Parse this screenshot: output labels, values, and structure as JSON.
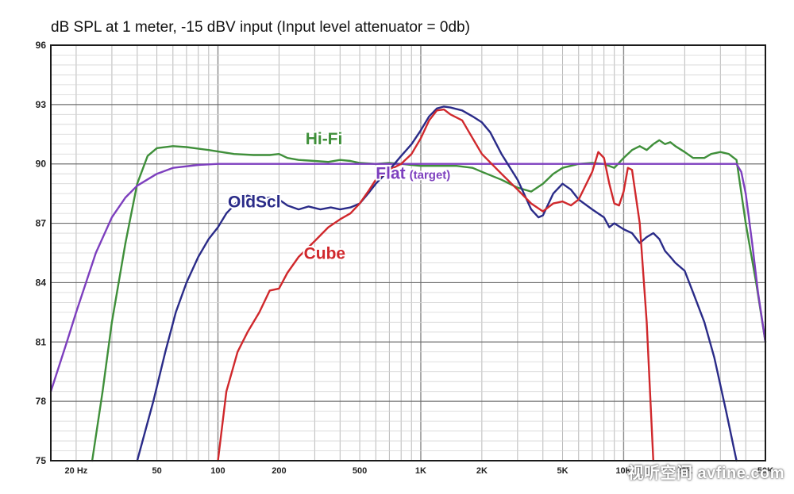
{
  "watermark": "视听空间 avfine.com",
  "chart_data": {
    "type": "line",
    "title": "dB SPL at 1 meter, -15 dBV input (Input level attenuator = 0db)",
    "xscale": "log",
    "xlim": [
      15,
      50000
    ],
    "ylim": [
      75,
      96
    ],
    "yticks": [
      75,
      78,
      81,
      84,
      87,
      90,
      93,
      96
    ],
    "xticks": [
      {
        "value": 20,
        "label": "20 Hz"
      },
      {
        "value": 50,
        "label": "50"
      },
      {
        "value": 100,
        "label": "100"
      },
      {
        "value": 200,
        "label": "200"
      },
      {
        "value": 500,
        "label": "500"
      },
      {
        "value": 1000,
        "label": "1K"
      },
      {
        "value": 2000,
        "label": "2K"
      },
      {
        "value": 5000,
        "label": "5K"
      },
      {
        "value": 10000,
        "label": "10K"
      },
      {
        "value": 20000,
        "label": "20K"
      },
      {
        "value": 50000,
        "label": "50K"
      }
    ],
    "grid": true,
    "series": [
      {
        "name": "Hi-Fi",
        "color": "#3f8f3a",
        "label_at": [
          270,
          91.0
        ],
        "points": [
          [
            24,
            75
          ],
          [
            27,
            78.5
          ],
          [
            30,
            82
          ],
          [
            35,
            86
          ],
          [
            40,
            89
          ],
          [
            45,
            90.4
          ],
          [
            50,
            90.8
          ],
          [
            60,
            90.9
          ],
          [
            70,
            90.85
          ],
          [
            90,
            90.7
          ],
          [
            120,
            90.5
          ],
          [
            150,
            90.45
          ],
          [
            180,
            90.45
          ],
          [
            200,
            90.5
          ],
          [
            220,
            90.3
          ],
          [
            250,
            90.2
          ],
          [
            300,
            90.15
          ],
          [
            350,
            90.1
          ],
          [
            400,
            90.2
          ],
          [
            450,
            90.15
          ],
          [
            500,
            90.05
          ],
          [
            600,
            90.0
          ],
          [
            700,
            90.05
          ],
          [
            800,
            90.0
          ],
          [
            900,
            89.95
          ],
          [
            1000,
            89.9
          ],
          [
            1200,
            89.9
          ],
          [
            1500,
            89.9
          ],
          [
            1800,
            89.8
          ],
          [
            2000,
            89.6
          ],
          [
            2500,
            89.2
          ],
          [
            3000,
            88.8
          ],
          [
            3500,
            88.6
          ],
          [
            4000,
            89.0
          ],
          [
            4500,
            89.5
          ],
          [
            5000,
            89.8
          ],
          [
            6000,
            90.0
          ],
          [
            7000,
            90.05
          ],
          [
            8000,
            90.0
          ],
          [
            9000,
            89.8
          ],
          [
            10000,
            90.3
          ],
          [
            11000,
            90.7
          ],
          [
            12000,
            90.9
          ],
          [
            13000,
            90.7
          ],
          [
            14000,
            91.0
          ],
          [
            15000,
            91.2
          ],
          [
            16000,
            91.0
          ],
          [
            17000,
            91.1
          ],
          [
            18000,
            90.9
          ],
          [
            20000,
            90.6
          ],
          [
            22000,
            90.3
          ],
          [
            25000,
            90.3
          ],
          [
            27000,
            90.5
          ],
          [
            30000,
            90.6
          ],
          [
            33000,
            90.5
          ],
          [
            36000,
            90.2
          ],
          [
            40000,
            87
          ],
          [
            45000,
            84
          ],
          [
            50000,
            81
          ]
        ]
      },
      {
        "name": "Flat",
        "subname": "(target)",
        "color": "#7d3fbe",
        "label_at": [
          600,
          89.25
        ],
        "points": [
          [
            15,
            78.5
          ],
          [
            18,
            81
          ],
          [
            20,
            82.5
          ],
          [
            25,
            85.5
          ],
          [
            30,
            87.3
          ],
          [
            35,
            88.3
          ],
          [
            40,
            88.9
          ],
          [
            50,
            89.5
          ],
          [
            60,
            89.8
          ],
          [
            80,
            89.95
          ],
          [
            100,
            90
          ],
          [
            1000,
            90
          ],
          [
            36000,
            90
          ],
          [
            38000,
            89.6
          ],
          [
            40000,
            88.5
          ],
          [
            43000,
            86
          ],
          [
            46000,
            83.5
          ],
          [
            50000,
            81
          ]
        ]
      },
      {
        "name": "OldScl",
        "color": "#2a2b88",
        "label_at": [
          112,
          87.8
        ],
        "points": [
          [
            40,
            75
          ],
          [
            48,
            78
          ],
          [
            55,
            80.5
          ],
          [
            62,
            82.5
          ],
          [
            70,
            84
          ],
          [
            80,
            85.3
          ],
          [
            90,
            86.2
          ],
          [
            100,
            86.8
          ],
          [
            110,
            87.5
          ],
          [
            125,
            88.1
          ],
          [
            140,
            88.4
          ],
          [
            160,
            88.2
          ],
          [
            180,
            88.3
          ],
          [
            200,
            88.2
          ],
          [
            220,
            87.9
          ],
          [
            250,
            87.7
          ],
          [
            280,
            87.85
          ],
          [
            320,
            87.7
          ],
          [
            360,
            87.8
          ],
          [
            400,
            87.7
          ],
          [
            450,
            87.8
          ],
          [
            500,
            88.0
          ],
          [
            550,
            88.5
          ],
          [
            600,
            89.0
          ],
          [
            700,
            89.7
          ],
          [
            800,
            90.4
          ],
          [
            900,
            91.0
          ],
          [
            1000,
            91.7
          ],
          [
            1100,
            92.4
          ],
          [
            1200,
            92.8
          ],
          [
            1300,
            92.9
          ],
          [
            1400,
            92.85
          ],
          [
            1600,
            92.7
          ],
          [
            1800,
            92.4
          ],
          [
            2000,
            92.1
          ],
          [
            2200,
            91.6
          ],
          [
            2500,
            90.5
          ],
          [
            3000,
            89.2
          ],
          [
            3500,
            87.7
          ],
          [
            3800,
            87.3
          ],
          [
            4000,
            87.4
          ],
          [
            4500,
            88.5
          ],
          [
            5000,
            89.0
          ],
          [
            5500,
            88.7
          ],
          [
            6000,
            88.2
          ],
          [
            7000,
            87.7
          ],
          [
            8000,
            87.3
          ],
          [
            8500,
            86.8
          ],
          [
            9000,
            87.0
          ],
          [
            10000,
            86.7
          ],
          [
            11000,
            86.5
          ],
          [
            12000,
            86.0
          ],
          [
            13000,
            86.3
          ],
          [
            14000,
            86.5
          ],
          [
            15000,
            86.2
          ],
          [
            16000,
            85.6
          ],
          [
            17000,
            85.3
          ],
          [
            18000,
            85.0
          ],
          [
            20000,
            84.6
          ],
          [
            22000,
            83.5
          ],
          [
            25000,
            82.0
          ],
          [
            28000,
            80.2
          ],
          [
            32000,
            77.5
          ],
          [
            36000,
            75
          ]
        ]
      },
      {
        "name": "Cube",
        "color": "#d0282c",
        "label_at": [
          265,
          85.2
        ],
        "points": [
          [
            100,
            75
          ],
          [
            110,
            78.5
          ],
          [
            125,
            80.5
          ],
          [
            140,
            81.5
          ],
          [
            160,
            82.5
          ],
          [
            180,
            83.6
          ],
          [
            200,
            83.7
          ],
          [
            220,
            84.5
          ],
          [
            250,
            85.3
          ],
          [
            300,
            86.1
          ],
          [
            350,
            86.8
          ],
          [
            400,
            87.2
          ],
          [
            450,
            87.5
          ],
          [
            500,
            88.0
          ],
          [
            550,
            88.6
          ],
          [
            600,
            89.2
          ],
          [
            700,
            89.7
          ],
          [
            800,
            90.0
          ],
          [
            900,
            90.5
          ],
          [
            1000,
            91.3
          ],
          [
            1100,
            92.2
          ],
          [
            1200,
            92.7
          ],
          [
            1300,
            92.75
          ],
          [
            1400,
            92.5
          ],
          [
            1600,
            92.2
          ],
          [
            1800,
            91.3
          ],
          [
            2000,
            90.5
          ],
          [
            2500,
            89.5
          ],
          [
            3000,
            88.7
          ],
          [
            3500,
            88.0
          ],
          [
            4000,
            87.6
          ],
          [
            4500,
            88.0
          ],
          [
            5000,
            88.1
          ],
          [
            5500,
            87.9
          ],
          [
            6000,
            88.2
          ],
          [
            7000,
            89.6
          ],
          [
            7500,
            90.6
          ],
          [
            8000,
            90.3
          ],
          [
            8500,
            89.0
          ],
          [
            9000,
            88.0
          ],
          [
            9500,
            87.9
          ],
          [
            10000,
            88.6
          ],
          [
            10500,
            89.8
          ],
          [
            11000,
            89.7
          ],
          [
            12000,
            87.0
          ],
          [
            13000,
            82
          ],
          [
            14000,
            75
          ]
        ]
      }
    ]
  }
}
